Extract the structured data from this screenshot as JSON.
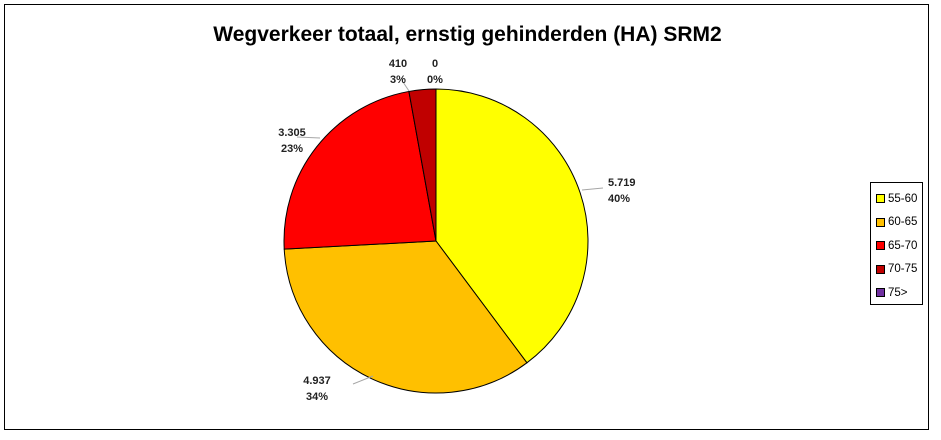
{
  "colors": {
    "55-60": "#FFFF00",
    "60-65": "#FFC000",
    "65-70": "#FF0000",
    "70-75": "#C00000",
    "75>": "#7030A0"
  },
  "chart_data": {
    "type": "pie",
    "title": "Wegverkeer totaal, ernstig gehinderden (HA) SRM2",
    "categories": [
      "55-60",
      "60-65",
      "65-70",
      "70-75",
      "75>"
    ],
    "values": [
      5719,
      4937,
      3305,
      410,
      0
    ],
    "value_labels": [
      "5.719",
      "4.937",
      "3.305",
      "410",
      "0"
    ],
    "percent_labels": [
      "40%",
      "34%",
      "23%",
      "3%",
      "0%"
    ],
    "legend_position": "right"
  }
}
